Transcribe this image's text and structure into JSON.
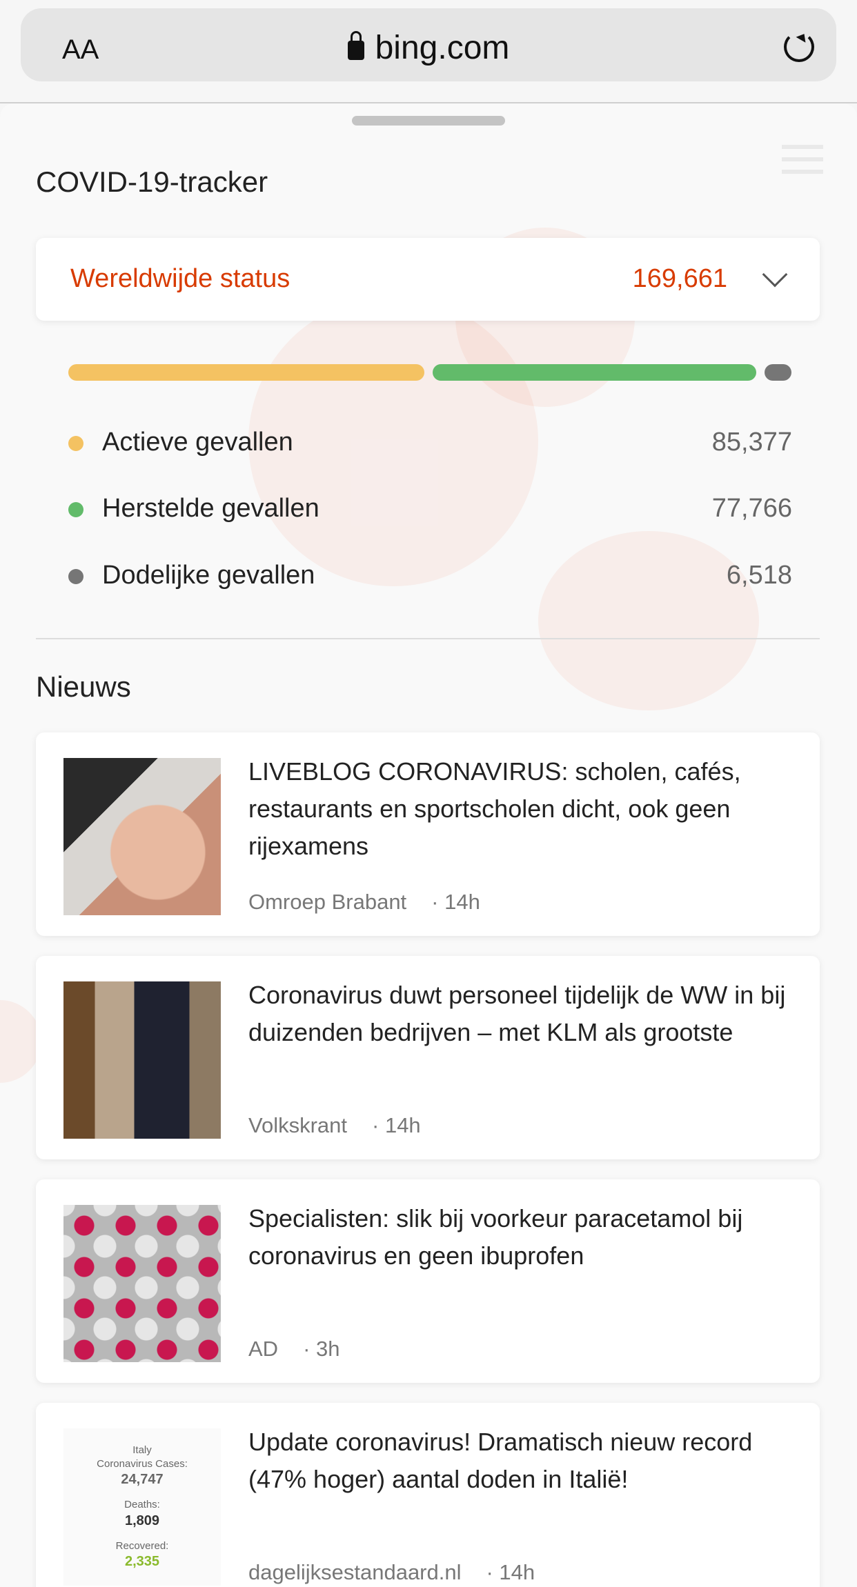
{
  "browser": {
    "text_size_label": "AA",
    "url": "bing.com"
  },
  "tracker": {
    "title": "COVID-19-tracker",
    "status_label": "Wereldwijde status",
    "status_total": "169,661",
    "bar_fractions": {
      "active": 0.503,
      "recovered": 0.458,
      "deaths": 0.038
    },
    "colors": {
      "accent": "#d83b01",
      "active": "#f4c262",
      "recovered": "#62bb6a",
      "deaths": "#767676"
    },
    "rows": [
      {
        "label": "Actieve gevallen",
        "value": "85,377"
      },
      {
        "label": "Herstelde gevallen",
        "value": "77,766"
      },
      {
        "label": "Dodelijke gevallen",
        "value": "6,518"
      }
    ]
  },
  "news": {
    "heading": "Nieuws",
    "items": [
      {
        "title": "LIVEBLOG CORONAVIRUS: scholen, cafés, restaurants en sportscholen dicht, ook geen rijexamens",
        "source": "Omroep Brabant",
        "time": "· 14h"
      },
      {
        "title": "Coronavirus duwt personeel tijdelijk de WW in bij duizenden bedrijven – met KLM als grootste",
        "source": "Volkskrant",
        "time": "· 14h"
      },
      {
        "title": "Specialisten: slik bij voorkeur paracetamol bij coronavirus en geen ibuprofen",
        "source": "AD",
        "time": "· 3h"
      },
      {
        "title": "Update coronavirus! Dramatisch nieuw record (47% hoger) aantal doden in Italië!",
        "source": "dagelijksestandaard.nl",
        "time": "· 14h",
        "thumb_text": {
          "country": "Italy",
          "cases_label": "Coronavirus Cases:",
          "cases": "24,747",
          "deaths_label": "Deaths:",
          "deaths": "1,809",
          "recovered_label": "Recovered:",
          "recovered": "2,335"
        }
      }
    ]
  }
}
